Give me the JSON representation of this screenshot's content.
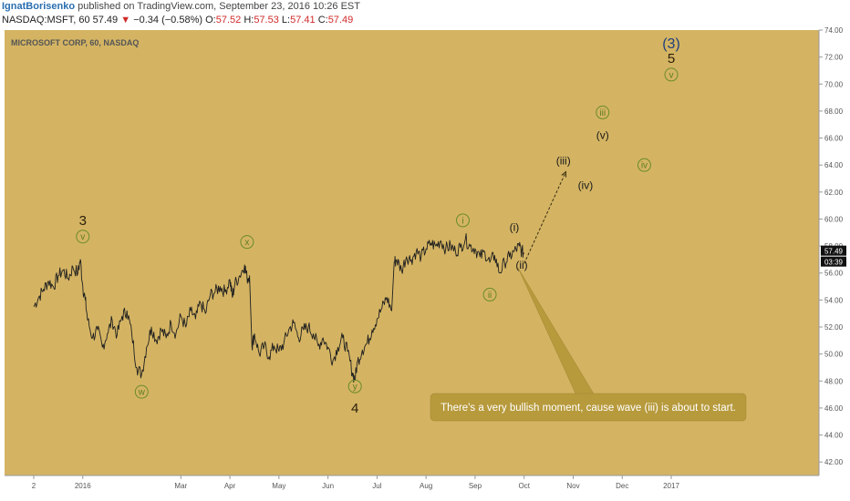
{
  "header": {
    "author": "IgnatBorisenko",
    "published": " published on TradingView.com, September 23, 2016 10:26 EST",
    "symbol": "NASDAQ:MSFT, 60",
    "last": "57.49",
    "change_arrow": "▼",
    "change": "−0.34 (−0.58%)",
    "o_label": "O:",
    "o_val": "57.52",
    "h_label": "H:",
    "h_val": "57.53",
    "l_label": "L:",
    "l_val": "57.41",
    "c_label": "C:",
    "c_val": "57.49"
  },
  "chart_data": {
    "type": "line",
    "title": "MICROSOFT CORP, 60, NASDAQ",
    "ylim": [
      41,
      74
    ],
    "y_ticks": [
      "42.00",
      "44.00",
      "46.00",
      "48.00",
      "50.00",
      "52.00",
      "54.00",
      "56.00",
      "58.00",
      "60.00",
      "62.00",
      "64.00",
      "66.00",
      "68.00",
      "70.00",
      "72.00",
      "74.00"
    ],
    "x_ticks": [
      {
        "label": "2",
        "x": 0
      },
      {
        "label": "2016",
        "x": 1
      },
      {
        "label": "Mar",
        "x": 3
      },
      {
        "label": "Apr",
        "x": 4
      },
      {
        "label": "May",
        "x": 5
      },
      {
        "label": "Jun",
        "x": 6
      },
      {
        "label": "Jul",
        "x": 7
      },
      {
        "label": "Aug",
        "x": 8
      },
      {
        "label": "Sep",
        "x": 9
      },
      {
        "label": "Oct",
        "x": 10
      },
      {
        "label": "Nov",
        "x": 11
      },
      {
        "label": "Dec",
        "x": 12
      },
      {
        "label": "2017",
        "x": 13
      }
    ],
    "series": [
      {
        "points": [
          [
            0.0,
            53.5
          ],
          [
            0.1,
            54.2
          ],
          [
            0.2,
            54.8
          ],
          [
            0.3,
            55.4
          ],
          [
            0.4,
            55.0
          ],
          [
            0.5,
            55.8
          ],
          [
            0.6,
            56.2
          ],
          [
            0.7,
            55.6
          ],
          [
            0.8,
            56.4
          ],
          [
            0.9,
            56.0
          ],
          [
            0.95,
            57.0
          ],
          [
            1.0,
            55.0
          ],
          [
            1.05,
            54.0
          ],
          [
            1.1,
            52.5
          ],
          [
            1.2,
            51.2
          ],
          [
            1.3,
            51.8
          ],
          [
            1.4,
            50.5
          ],
          [
            1.5,
            51.5
          ],
          [
            1.6,
            52.5
          ],
          [
            1.7,
            51.4
          ],
          [
            1.8,
            52.8
          ],
          [
            1.9,
            53.2
          ],
          [
            2.0,
            51.5
          ],
          [
            2.1,
            49.0
          ],
          [
            2.2,
            48.5
          ],
          [
            2.3,
            50.5
          ],
          [
            2.4,
            52.0
          ],
          [
            2.5,
            51.0
          ],
          [
            2.6,
            51.8
          ],
          [
            2.7,
            51.2
          ],
          [
            2.8,
            52.3
          ],
          [
            2.9,
            51.5
          ],
          [
            3.0,
            52.8
          ],
          [
            3.1,
            52.0
          ],
          [
            3.2,
            53.2
          ],
          [
            3.3,
            52.6
          ],
          [
            3.4,
            53.8
          ],
          [
            3.5,
            53.0
          ],
          [
            3.6,
            54.4
          ],
          [
            3.7,
            54.6
          ],
          [
            3.8,
            55.0
          ],
          [
            3.9,
            54.6
          ],
          [
            4.0,
            55.5
          ],
          [
            4.05,
            54.2
          ],
          [
            4.1,
            55.2
          ],
          [
            4.2,
            55.8
          ],
          [
            4.3,
            56.6
          ],
          [
            4.35,
            55.6
          ],
          [
            4.4,
            55.8
          ],
          [
            4.45,
            50.5
          ],
          [
            4.5,
            51.5
          ],
          [
            4.6,
            50.0
          ],
          [
            4.7,
            50.6
          ],
          [
            4.8,
            49.8
          ],
          [
            4.9,
            50.6
          ],
          [
            5.0,
            50.2
          ],
          [
            5.1,
            50.8
          ],
          [
            5.2,
            51.8
          ],
          [
            5.3,
            52.3
          ],
          [
            5.4,
            51.2
          ],
          [
            5.5,
            51.8
          ],
          [
            5.6,
            52.0
          ],
          [
            5.7,
            51.5
          ],
          [
            5.8,
            50.6
          ],
          [
            5.9,
            51.2
          ],
          [
            6.0,
            50.5
          ],
          [
            6.1,
            49.5
          ],
          [
            6.2,
            50.5
          ],
          [
            6.3,
            51.2
          ],
          [
            6.4,
            50.2
          ],
          [
            6.5,
            48.6
          ],
          [
            6.55,
            48.1
          ],
          [
            6.6,
            49.4
          ],
          [
            6.7,
            50.3
          ],
          [
            6.8,
            50.8
          ],
          [
            6.9,
            51.8
          ],
          [
            7.0,
            52.6
          ],
          [
            7.1,
            53.4
          ],
          [
            7.2,
            54.2
          ],
          [
            7.3,
            53.2
          ],
          [
            7.35,
            56.8
          ],
          [
            7.4,
            57.0
          ],
          [
            7.5,
            56.2
          ],
          [
            7.6,
            57.2
          ],
          [
            7.7,
            57.0
          ],
          [
            7.8,
            57.6
          ],
          [
            7.9,
            57.2
          ],
          [
            8.0,
            57.8
          ],
          [
            8.1,
            58.2
          ],
          [
            8.2,
            58.0
          ],
          [
            8.3,
            58.4
          ],
          [
            8.4,
            57.8
          ],
          [
            8.5,
            58.0
          ],
          [
            8.6,
            57.6
          ],
          [
            8.7,
            57.9
          ],
          [
            8.8,
            58.5
          ],
          [
            8.9,
            58.0
          ],
          [
            9.0,
            57.8
          ],
          [
            9.1,
            57.2
          ],
          [
            9.2,
            57.5
          ],
          [
            9.3,
            56.8
          ],
          [
            9.4,
            57.3
          ],
          [
            9.5,
            56.0
          ],
          [
            9.6,
            56.8
          ],
          [
            9.7,
            57.2
          ],
          [
            9.8,
            57.6
          ],
          [
            9.9,
            58.0
          ],
          [
            9.95,
            57.6
          ],
          [
            10.0,
            57.49
          ]
        ]
      }
    ],
    "projection": [
      [
        10.0,
        56.7
      ],
      [
        10.85,
        63.5
      ]
    ],
    "wave_labels": [
      {
        "text": "3",
        "x": 1.0,
        "y": 59.9,
        "kind": "number"
      },
      {
        "text": "v",
        "x": 1.0,
        "y": 58.7,
        "kind": "circle"
      },
      {
        "text": "w",
        "x": 2.2,
        "y": 47.2,
        "kind": "circle"
      },
      {
        "text": "x",
        "x": 4.35,
        "y": 58.3,
        "kind": "circle"
      },
      {
        "text": "y",
        "x": 6.55,
        "y": 47.6,
        "kind": "circle"
      },
      {
        "text": "4",
        "x": 6.55,
        "y": 46.0,
        "kind": "number"
      },
      {
        "text": "i",
        "x": 8.75,
        "y": 59.9,
        "kind": "circle"
      },
      {
        "text": "ii",
        "x": 9.3,
        "y": 54.4,
        "kind": "circle"
      },
      {
        "text": "(i)",
        "x": 9.8,
        "y": 59.4,
        "kind": "paren"
      },
      {
        "text": "(ii)",
        "x": 9.95,
        "y": 56.6,
        "kind": "paren"
      },
      {
        "text": "(iii)",
        "x": 10.8,
        "y": 64.3,
        "kind": "paren"
      },
      {
        "text": "(iv)",
        "x": 11.25,
        "y": 62.5,
        "kind": "paren"
      },
      {
        "text": "(v)",
        "x": 11.6,
        "y": 66.2,
        "kind": "paren"
      },
      {
        "text": "iii",
        "x": 11.6,
        "y": 67.9,
        "kind": "circle"
      },
      {
        "text": "iv",
        "x": 12.45,
        "y": 64.0,
        "kind": "circle"
      },
      {
        "text": "(3)",
        "x": 13.0,
        "y": 73.0,
        "kind": "big"
      },
      {
        "text": "5",
        "x": 13.0,
        "y": 71.9,
        "kind": "number"
      },
      {
        "text": "v",
        "x": 13.0,
        "y": 70.7,
        "kind": "circle"
      }
    ],
    "price_labels": {
      "last": "57.49",
      "countdown": "03:39"
    },
    "annotation": "There's a very bullish moment, cause wave (iii) is about to start.",
    "colors": {
      "background": "#d4b463",
      "line": "#1f1f1f",
      "circle_stroke": "#6b8b2a",
      "circle_text": "#5f7d22",
      "paren_text": "#1a1a1a",
      "big_text": "#1f3f7a",
      "callout": "#b79a3c",
      "callout_text": "#ffffff",
      "axis_text": "#555555"
    }
  }
}
